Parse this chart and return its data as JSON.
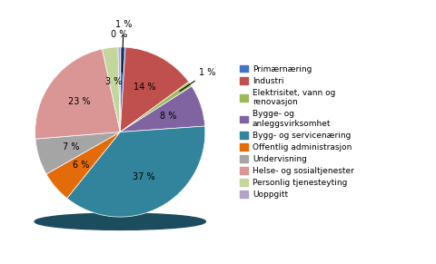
{
  "labels": [
    "Primærnæring",
    "Industri",
    "Elektrisitet, vann og\nrenovasjon",
    "Bygge- og\nanleggsvirksomhet",
    "Bygg- og servicenæring",
    "Offentlig administrasjon",
    "Undervisning",
    "Helse- og sosialtjenester",
    "Personlig tjenesteyting",
    "Uoppgitt"
  ],
  "legend_labels": [
    "Primærnæring",
    "Industri",
    "Elektrisitet, vann og\nrenovasjon",
    "Bygge- og\nanleggsvirksomhet",
    "Bygg- og servicenæring",
    "Offentlig administrasjon",
    "Undervisning",
    "Helse- og sosialtjenester",
    "Personlig tjenesteyting",
    "Uoppgitt"
  ],
  "values": [
    1,
    14,
    1,
    8,
    37,
    6,
    7,
    23,
    3,
    0.4
  ],
  "true_values": [
    1,
    14,
    1,
    8,
    37,
    6,
    7,
    23,
    3,
    0
  ],
  "colors": [
    "#4472C4",
    "#C0504D",
    "#9BBB59",
    "#8064A2",
    "#31849B",
    "#E36C09",
    "#A5A5A5",
    "#D99694",
    "#C3D69B",
    "#B2A2C7"
  ],
  "pct_labels": [
    "1 %",
    "14 %",
    "1 %",
    "8 %",
    "37 %",
    "6 %",
    "7 %",
    "23 %",
    "3 %",
    "0 %"
  ],
  "startangle": 90,
  "figsize": [
    4.81,
    2.91
  ],
  "dpi": 100,
  "shadow_color": "#1A5276"
}
